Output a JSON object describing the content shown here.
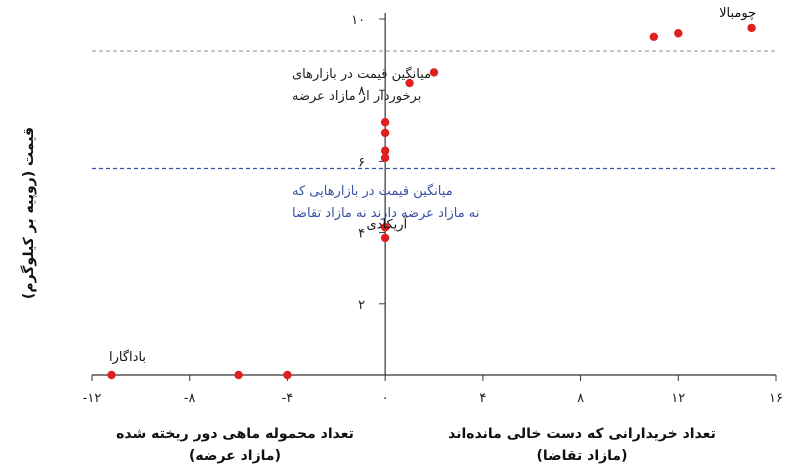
{
  "chart_data": {
    "type": "scatter",
    "xlim": [
      -12,
      16
    ],
    "ylim": [
      0,
      10
    ],
    "xticks": [
      {
        "value": -12,
        "label": "-۱۲"
      },
      {
        "value": -8,
        "label": "-۸"
      },
      {
        "value": -4,
        "label": "-۴"
      },
      {
        "value": 0,
        "label": "۰"
      },
      {
        "value": 4,
        "label": "۴"
      },
      {
        "value": 8,
        "label": "۸"
      },
      {
        "value": 12,
        "label": "۱۲"
      },
      {
        "value": 16,
        "label": "۱۶"
      }
    ],
    "yticks": [
      {
        "value": 2,
        "label": "۲"
      },
      {
        "value": 4,
        "label": "۴"
      },
      {
        "value": 6,
        "label": "۶"
      },
      {
        "value": 8,
        "label": "۸"
      },
      {
        "value": 10,
        "label": "۱۰"
      }
    ],
    "ylabel": "قیمت (روپیه بر کیلوگرم)",
    "xlabel_left": [
      "تعداد محموله ماهی دور ریخته شده",
      "(مازاد عرضه)"
    ],
    "xlabel_right": [
      "تعداد خریدارانی که دست خالی مانده‌اند",
      "(مازاد تقاضا)"
    ],
    "points": [
      {
        "x": -11.2,
        "y": 0
      },
      {
        "x": -6,
        "y": 0
      },
      {
        "x": -4,
        "y": 0
      },
      {
        "x": 0,
        "y": 3.85
      },
      {
        "x": 0,
        "y": 4.15
      },
      {
        "x": 0,
        "y": 6.1
      },
      {
        "x": 0,
        "y": 6.3
      },
      {
        "x": 0,
        "y": 6.8
      },
      {
        "x": 0,
        "y": 7.1
      },
      {
        "x": 1,
        "y": 8.2
      },
      {
        "x": 2,
        "y": 8.5
      },
      {
        "x": 11,
        "y": 9.5
      },
      {
        "x": 12,
        "y": 9.6
      },
      {
        "x": 15,
        "y": 9.75
      }
    ],
    "point_color": "#e0201f",
    "reference_lines": [
      {
        "y": 9.1,
        "color": "#999999",
        "label": [
          "میانگین قیمت در بازارهای",
          "برخوردار از مازاد عرضه"
        ]
      },
      {
        "y": 5.8,
        "color": "#3a4fa8",
        "label": [
          "میانگین قیمت در بازارهایی که",
          "نه مازاد عرضه دارند نه مازاد تقاضا"
        ]
      }
    ],
    "point_labels": [
      {
        "text": "چومبالا",
        "x": 15,
        "y": 9.75
      },
      {
        "text": "آریکادی",
        "x": 0,
        "y": 4.15
      },
      {
        "text": "باداگارا",
        "x": -11.2,
        "y": 0
      }
    ]
  }
}
